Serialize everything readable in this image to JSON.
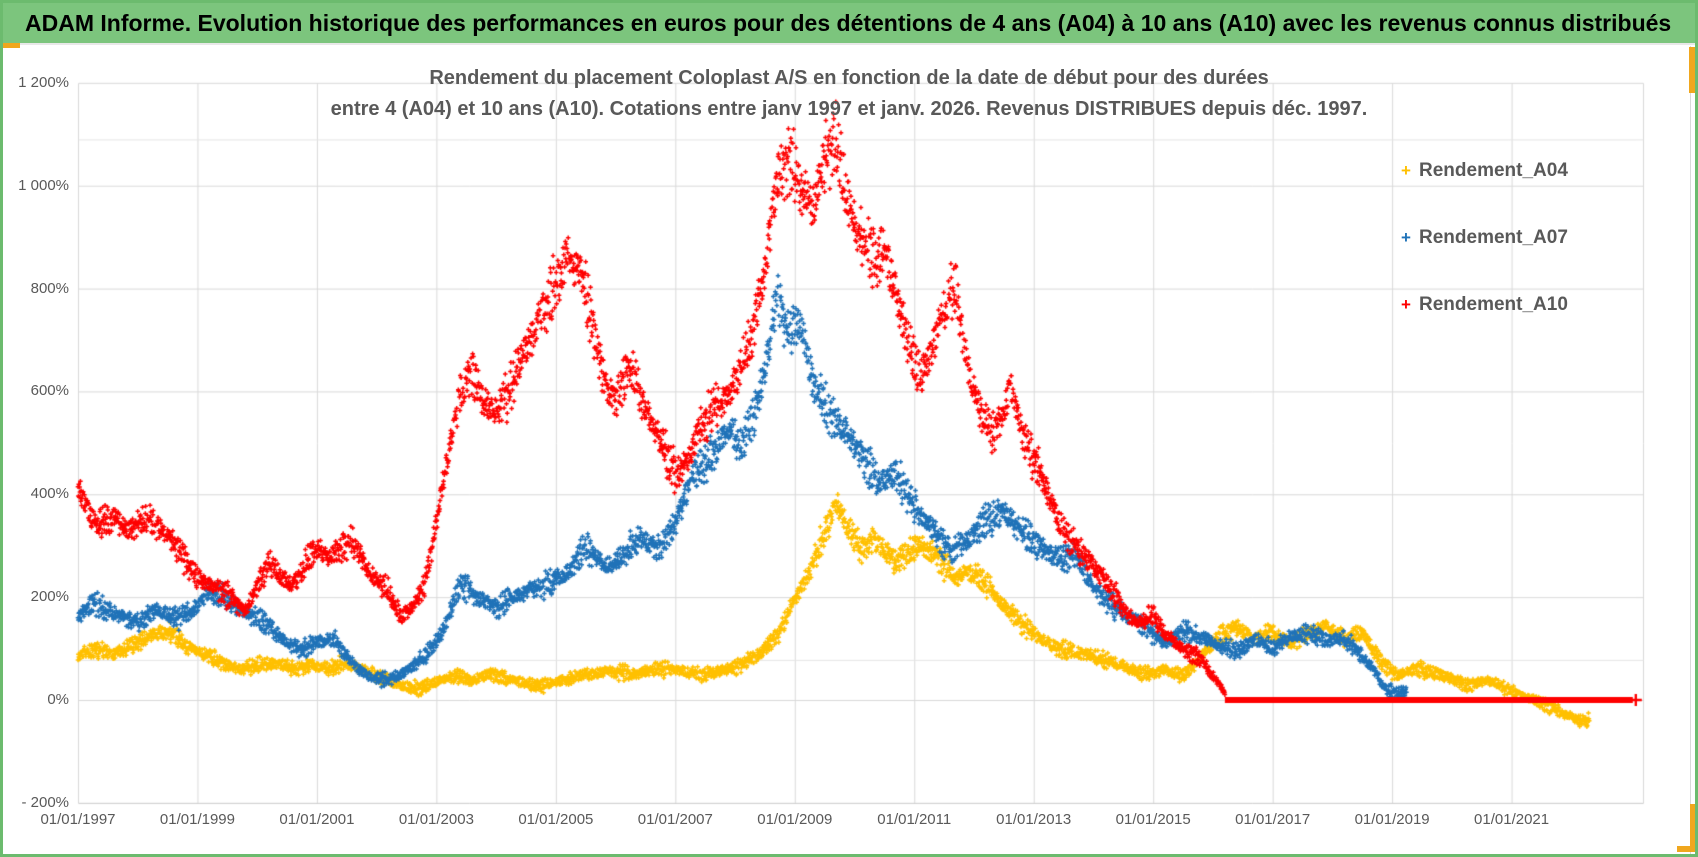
{
  "header": {
    "title": "ADAM Informe. Evolution historique des performances en euros pour des détentions de 4 ans (A04) à 10 ans (A10) avec les revenus connus distribués",
    "background": "#7cc57d"
  },
  "colors": {
    "frame_green": "#6cbb6e",
    "selection_orange": "#f0a71e",
    "gridline": "#d9d9d9",
    "axis_text": "#595959",
    "title_text": "#595959"
  },
  "chart_data": {
    "type": "scatter",
    "title_line1": "Rendement du placement Coloplast A/S en fonction de la date de début pour des durées",
    "title_line2": "entre 4 (A04) et 10 ans (A10). Cotations entre janv 1997 et janv. 2026. Revenus DISTRIBUES depuis déc. 1997.",
    "marker": "+",
    "x_axis": {
      "labels": [
        "01/01/1997",
        "01/01/1999",
        "01/01/2001",
        "01/01/2003",
        "01/01/2005",
        "01/01/2007",
        "01/01/2009",
        "01/01/2011",
        "01/01/2013",
        "01/01/2015",
        "01/01/2017",
        "01/01/2019",
        "01/01/2021"
      ],
      "tick_years": [
        1997,
        1999,
        2001,
        2003,
        2005,
        2007,
        2009,
        2011,
        2013,
        2015,
        2017,
        2019,
        2021
      ],
      "min_year": 1997.0,
      "max_year": 2023.2,
      "grid": true
    },
    "y_axis": {
      "labels": [
        "1 200%",
        "1 000%",
        "800%",
        "600%",
        "400%",
        "200%",
        "0%",
        "- 200%"
      ],
      "tick_values_pct": [
        1200,
        1000,
        800,
        600,
        400,
        200,
        0,
        -200
      ],
      "min_pct": -200,
      "max_pct": 1200,
      "major_unit_pct": 200,
      "grid": true,
      "faint_reference_lines_pct": [
        1090,
        78
      ]
    },
    "legend": [
      {
        "label": "Rendement_A04",
        "color": "#ffc000"
      },
      {
        "label": "Rendement_A07",
        "color": "#1f72b8"
      },
      {
        "label": "Rendement_A10",
        "color": "#fe0000"
      }
    ],
    "legend_position": "right-top",
    "series": [
      {
        "name": "Rendement_A04",
        "color": "#ffc000",
        "anchors": [
          [
            1997.0,
            85
          ],
          [
            1997.3,
            100
          ],
          [
            1997.6,
            90
          ],
          [
            1997.9,
            105
          ],
          [
            1998.2,
            125
          ],
          [
            1998.5,
            135
          ],
          [
            1998.8,
            105
          ],
          [
            1999.1,
            90
          ],
          [
            1999.4,
            75
          ],
          [
            1999.7,
            60
          ],
          [
            2000.0,
            68
          ],
          [
            2000.3,
            72
          ],
          [
            2000.6,
            62
          ],
          [
            2000.9,
            68
          ],
          [
            2001.2,
            62
          ],
          [
            2001.5,
            72
          ],
          [
            2001.8,
            55
          ],
          [
            2002.1,
            42
          ],
          [
            2002.4,
            28
          ],
          [
            2002.7,
            22
          ],
          [
            2003.0,
            35
          ],
          [
            2003.3,
            48
          ],
          [
            2003.6,
            38
          ],
          [
            2003.9,
            52
          ],
          [
            2004.2,
            42
          ],
          [
            2004.5,
            32
          ],
          [
            2004.8,
            28
          ],
          [
            2005.1,
            38
          ],
          [
            2005.4,
            48
          ],
          [
            2005.7,
            52
          ],
          [
            2006.0,
            56
          ],
          [
            2006.3,
            50
          ],
          [
            2006.6,
            58
          ],
          [
            2006.9,
            62
          ],
          [
            2007.2,
            55
          ],
          [
            2007.5,
            48
          ],
          [
            2007.8,
            58
          ],
          [
            2008.1,
            68
          ],
          [
            2008.4,
            88
          ],
          [
            2008.7,
            125
          ],
          [
            2008.9,
            170
          ],
          [
            2009.1,
            215
          ],
          [
            2009.3,
            265
          ],
          [
            2009.5,
            325
          ],
          [
            2009.7,
            385
          ],
          [
            2009.9,
            335
          ],
          [
            2010.1,
            295
          ],
          [
            2010.3,
            312
          ],
          [
            2010.5,
            292
          ],
          [
            2010.7,
            268
          ],
          [
            2010.9,
            288
          ],
          [
            2011.1,
            302
          ],
          [
            2011.3,
            285
          ],
          [
            2011.5,
            262
          ],
          [
            2011.7,
            235
          ],
          [
            2011.9,
            252
          ],
          [
            2012.1,
            235
          ],
          [
            2012.3,
            215
          ],
          [
            2012.5,
            185
          ],
          [
            2012.7,
            160
          ],
          [
            2012.9,
            140
          ],
          [
            2013.1,
            120
          ],
          [
            2013.4,
            100
          ],
          [
            2013.7,
            92
          ],
          [
            2014.0,
            86
          ],
          [
            2014.3,
            75
          ],
          [
            2014.6,
            62
          ],
          [
            2014.9,
            52
          ],
          [
            2015.2,
            58
          ],
          [
            2015.5,
            48
          ],
          [
            2015.8,
            85
          ],
          [
            2016.1,
            125
          ],
          [
            2016.4,
            140
          ],
          [
            2016.7,
            118
          ],
          [
            2017.0,
            132
          ],
          [
            2017.3,
            112
          ],
          [
            2017.6,
            128
          ],
          [
            2017.9,
            142
          ],
          [
            2018.2,
            118
          ],
          [
            2018.5,
            132
          ],
          [
            2018.7,
            95
          ],
          [
            2018.9,
            62
          ],
          [
            2019.1,
            48
          ],
          [
            2019.4,
            62
          ],
          [
            2019.7,
            52
          ],
          [
            2020.0,
            42
          ],
          [
            2020.3,
            28
          ],
          [
            2020.6,
            38
          ],
          [
            2020.9,
            22
          ],
          [
            2021.2,
            8
          ],
          [
            2021.5,
            -5
          ],
          [
            2021.8,
            -22
          ],
          [
            2022.1,
            -38
          ],
          [
            2022.3,
            -42
          ]
        ]
      },
      {
        "name": "Rendement_A07",
        "color": "#1f72b8",
        "anchors": [
          [
            1997.0,
            160
          ],
          [
            1997.25,
            190
          ],
          [
            1997.5,
            175
          ],
          [
            1997.75,
            160
          ],
          [
            1998.0,
            150
          ],
          [
            1998.3,
            178
          ],
          [
            1998.6,
            158
          ],
          [
            1998.9,
            168
          ],
          [
            1999.2,
            215
          ],
          [
            1999.5,
            192
          ],
          [
            1999.8,
            172
          ],
          [
            2000.1,
            152
          ],
          [
            2000.4,
            122
          ],
          [
            2000.7,
            98
          ],
          [
            2001.0,
            112
          ],
          [
            2001.3,
            118
          ],
          [
            2001.6,
            68
          ],
          [
            2001.9,
            45
          ],
          [
            2002.2,
            38
          ],
          [
            2002.5,
            58
          ],
          [
            2002.8,
            82
          ],
          [
            2003.1,
            132
          ],
          [
            2003.4,
            225
          ],
          [
            2003.7,
            198
          ],
          [
            2004.0,
            178
          ],
          [
            2004.3,
            198
          ],
          [
            2004.6,
            215
          ],
          [
            2004.9,
            228
          ],
          [
            2005.2,
            248
          ],
          [
            2005.5,
            298
          ],
          [
            2005.8,
            258
          ],
          [
            2006.1,
            278
          ],
          [
            2006.4,
            315
          ],
          [
            2006.7,
            295
          ],
          [
            2007.0,
            340
          ],
          [
            2007.3,
            440
          ],
          [
            2007.6,
            475
          ],
          [
            2007.9,
            532
          ],
          [
            2008.1,
            495
          ],
          [
            2008.3,
            548
          ],
          [
            2008.5,
            640
          ],
          [
            2008.7,
            790
          ],
          [
            2008.9,
            715
          ],
          [
            2009.1,
            735
          ],
          [
            2009.3,
            620
          ],
          [
            2009.5,
            575
          ],
          [
            2009.7,
            540
          ],
          [
            2009.9,
            520
          ],
          [
            2010.1,
            480
          ],
          [
            2010.4,
            420
          ],
          [
            2010.7,
            440
          ],
          [
            2011.0,
            380
          ],
          [
            2011.3,
            330
          ],
          [
            2011.6,
            290
          ],
          [
            2011.9,
            310
          ],
          [
            2012.2,
            350
          ],
          [
            2012.5,
            365
          ],
          [
            2012.8,
            325
          ],
          [
            2013.1,
            300
          ],
          [
            2013.4,
            275
          ],
          [
            2013.7,
            280
          ],
          [
            2014.0,
            220
          ],
          [
            2014.3,
            185
          ],
          [
            2014.6,
            160
          ],
          [
            2014.9,
            140
          ],
          [
            2015.2,
            108
          ],
          [
            2015.5,
            135
          ],
          [
            2015.8,
            122
          ],
          [
            2016.1,
            108
          ],
          [
            2016.4,
            92
          ],
          [
            2016.7,
            118
          ],
          [
            2017.0,
            100
          ],
          [
            2017.3,
            125
          ],
          [
            2017.6,
            130
          ],
          [
            2017.9,
            115
          ],
          [
            2018.2,
            120
          ],
          [
            2018.45,
            90
          ],
          [
            2018.7,
            58
          ],
          [
            2018.9,
            20
          ],
          [
            2019.1,
            14
          ],
          [
            2019.25,
            16
          ]
        ]
      },
      {
        "name": "Rendement_A10",
        "color": "#fe0000",
        "anchors": [
          [
            1997.0,
            410
          ],
          [
            1997.2,
            360
          ],
          [
            1997.4,
            340
          ],
          [
            1997.6,
            355
          ],
          [
            1997.8,
            330
          ],
          [
            1998.0,
            340
          ],
          [
            1998.2,
            350
          ],
          [
            1998.4,
            330
          ],
          [
            1998.6,
            305
          ],
          [
            1998.8,
            268
          ],
          [
            1999.0,
            238
          ],
          [
            1999.2,
            225
          ],
          [
            1999.4,
            212
          ],
          [
            1999.6,
            195
          ],
          [
            1999.8,
            172
          ],
          [
            2000.0,
            222
          ],
          [
            2000.2,
            268
          ],
          [
            2000.4,
            238
          ],
          [
            2000.6,
            225
          ],
          [
            2000.8,
            262
          ],
          [
            2001.0,
            295
          ],
          [
            2001.2,
            275
          ],
          [
            2001.4,
            298
          ],
          [
            2001.6,
            310
          ],
          [
            2001.8,
            262
          ],
          [
            2002.0,
            230
          ],
          [
            2002.2,
            212
          ],
          [
            2002.4,
            162
          ],
          [
            2002.6,
            178
          ],
          [
            2002.8,
            225
          ],
          [
            2003.0,
            345
          ],
          [
            2003.2,
            480
          ],
          [
            2003.4,
            595
          ],
          [
            2003.6,
            640
          ],
          [
            2003.8,
            580
          ],
          [
            2004.0,
            560
          ],
          [
            2004.2,
            598
          ],
          [
            2004.4,
            655
          ],
          [
            2004.6,
            705
          ],
          [
            2004.8,
            768
          ],
          [
            2005.0,
            808
          ],
          [
            2005.2,
            862
          ],
          [
            2005.4,
            835
          ],
          [
            2005.6,
            738
          ],
          [
            2005.8,
            620
          ],
          [
            2006.0,
            582
          ],
          [
            2006.2,
            648
          ],
          [
            2006.4,
            595
          ],
          [
            2006.6,
            542
          ],
          [
            2006.8,
            488
          ],
          [
            2007.0,
            442
          ],
          [
            2007.2,
            462
          ],
          [
            2007.4,
            528
          ],
          [
            2007.6,
            558
          ],
          [
            2007.9,
            598
          ],
          [
            2008.1,
            645
          ],
          [
            2008.3,
            712
          ],
          [
            2008.5,
            840
          ],
          [
            2008.7,
            1005
          ],
          [
            2008.9,
            1058
          ],
          [
            2009.1,
            1002
          ],
          [
            2009.3,
            955
          ],
          [
            2009.5,
            1062
          ],
          [
            2009.7,
            1078
          ],
          [
            2009.9,
            962
          ],
          [
            2010.1,
            905
          ],
          [
            2010.3,
            848
          ],
          [
            2010.5,
            872
          ],
          [
            2010.7,
            792
          ],
          [
            2010.9,
            700
          ],
          [
            2011.1,
            620
          ],
          [
            2011.3,
            680
          ],
          [
            2011.5,
            760
          ],
          [
            2011.7,
            800
          ],
          [
            2011.9,
            640
          ],
          [
            2012.1,
            560
          ],
          [
            2012.3,
            520
          ],
          [
            2012.5,
            555
          ],
          [
            2012.6,
            620
          ],
          [
            2012.8,
            520
          ],
          [
            2013.0,
            468
          ],
          [
            2013.2,
            418
          ],
          [
            2013.4,
            352
          ],
          [
            2013.6,
            312
          ],
          [
            2013.8,
            285
          ],
          [
            2014.0,
            262
          ],
          [
            2014.2,
            228
          ],
          [
            2014.4,
            198
          ],
          [
            2014.6,
            162
          ],
          [
            2014.8,
            152
          ],
          [
            2015.0,
            168
          ],
          [
            2015.2,
            128
          ],
          [
            2015.4,
            108
          ],
          [
            2015.6,
            92
          ],
          [
            2015.8,
            78
          ],
          [
            2016.0,
            48
          ],
          [
            2016.1,
            28
          ],
          [
            2016.2,
            18
          ]
        ],
        "flat_zero_segment": {
          "from_year": 2016.2,
          "to_year": 2023.13,
          "value_pct": 0
        }
      }
    ]
  }
}
